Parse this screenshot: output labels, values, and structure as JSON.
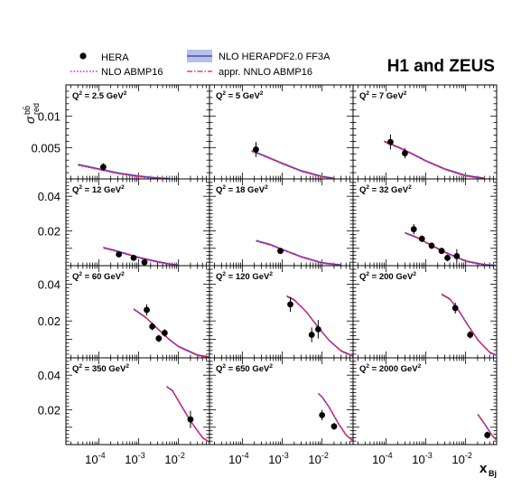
{
  "chart_data": {
    "type": "scatter",
    "title": "H1 and ZEUS",
    "ylabel_main": "σ",
    "ylabel_sup": "bb̄",
    "ylabel_sub": "red",
    "xlabel_main": "x",
    "xlabel_sub": "Bj",
    "xscale": "log",
    "xlim": [
      1.5e-05,
      0.06
    ],
    "x_ticks": [
      {
        "value": 0.0001,
        "base": "10",
        "exp": "-4"
      },
      {
        "value": 0.001,
        "base": "10",
        "exp": "-3"
      },
      {
        "value": 0.01,
        "base": "10",
        "exp": "-2"
      }
    ],
    "legend": {
      "placement": "top",
      "entries": [
        {
          "key": "data",
          "label": "HERA"
        },
        {
          "key": "abmp16",
          "label": "NLO ABMP16"
        },
        {
          "key": "herapdf",
          "label": "NLO HERAPDF2.0 FF3A"
        },
        {
          "key": "nnlo",
          "label": "appr. NNLO ABMP16"
        }
      ]
    },
    "colors": {
      "data": "#000000",
      "herapdf_line": "#2233cc",
      "herapdf_band": "#b8c0e8",
      "abmp16": "#ff00ff",
      "nnlo": "#ee2222"
    },
    "rows": [
      {
        "ylim": [
          0,
          0.015
        ],
        "yticks": [
          {
            "v": 0.005,
            "t": "0.005"
          },
          {
            "v": 0.01,
            "t": "0.01"
          }
        ]
      },
      {
        "ylim": [
          0,
          0.05
        ],
        "yticks": [
          {
            "v": 0.02,
            "t": "0.02"
          },
          {
            "v": 0.04,
            "t": "0.04"
          }
        ]
      },
      {
        "ylim": [
          0,
          0.05
        ],
        "yticks": [
          {
            "v": 0.02,
            "t": "0.02"
          },
          {
            "v": 0.04,
            "t": "0.04"
          }
        ]
      },
      {
        "ylim": [
          0,
          0.05
        ],
        "yticks": [
          {
            "v": 0.02,
            "t": "0.02"
          },
          {
            "v": 0.04,
            "t": "0.04"
          }
        ]
      }
    ],
    "panels": [
      {
        "q2": "2.5",
        "row": 0,
        "col": 0,
        "points": [
          {
            "x": 0.00013,
            "y": 0.0019,
            "err": 0.0006
          }
        ],
        "curve": [
          [
            3e-05,
            0.0023
          ],
          [
            0.0001,
            0.0016
          ],
          [
            0.0003,
            0.00095
          ],
          [
            0.001,
            0.00045
          ],
          [
            0.003,
            0.00015
          ],
          [
            0.006,
            5e-05
          ]
        ]
      },
      {
        "q2": "5",
        "row": 0,
        "col": 1,
        "points": [
          {
            "x": 0.00022,
            "y": 0.0047,
            "err": 0.0012
          }
        ],
        "curve": [
          [
            0.00017,
            0.0045
          ],
          [
            0.0003,
            0.0039
          ],
          [
            0.001,
            0.0025
          ],
          [
            0.003,
            0.0013
          ],
          [
            0.01,
            0.0004
          ],
          [
            0.02,
            0.0001
          ]
        ]
      },
      {
        "q2": "7",
        "row": 0,
        "col": 2,
        "points": [
          {
            "x": 0.00013,
            "y": 0.0059,
            "err": 0.0012
          },
          {
            "x": 0.0003,
            "y": 0.0041,
            "err": 0.0008
          }
        ],
        "curve": [
          [
            9e-05,
            0.006
          ],
          [
            0.0002,
            0.0051
          ],
          [
            0.0005,
            0.0039
          ],
          [
            0.001,
            0.0029
          ],
          [
            0.003,
            0.0016
          ],
          [
            0.01,
            0.00055
          ],
          [
            0.03,
            0.0001
          ]
        ]
      },
      {
        "q2": "12",
        "row": 1,
        "col": 0,
        "points": [
          {
            "x": 0.00032,
            "y": 0.0065,
            "err": 0.0015
          },
          {
            "x": 0.00075,
            "y": 0.0045,
            "err": 0.0012
          },
          {
            "x": 0.0014,
            "y": 0.002,
            "err": 0.0006
          }
        ],
        "curve": [
          [
            0.00013,
            0.0105
          ],
          [
            0.0003,
            0.0083
          ],
          [
            0.001,
            0.0048
          ],
          [
            0.003,
            0.0023
          ],
          [
            0.006,
            0.001
          ],
          [
            0.01,
            0.0004
          ]
        ]
      },
      {
        "q2": "18",
        "row": 1,
        "col": 1,
        "points": [
          {
            "x": 0.0009,
            "y": 0.0085,
            "err": 0.0015
          }
        ],
        "curve": [
          [
            0.00022,
            0.0145
          ],
          [
            0.0005,
            0.0122
          ],
          [
            0.001,
            0.0094
          ],
          [
            0.003,
            0.0052
          ],
          [
            0.01,
            0.0017
          ],
          [
            0.03,
            0.0004
          ]
        ]
      },
      {
        "q2": "32",
        "row": 1,
        "col": 2,
        "points": [
          {
            "x": 0.0005,
            "y": 0.021,
            "err": 0.003
          },
          {
            "x": 0.0008,
            "y": 0.0155,
            "err": 0.002
          },
          {
            "x": 0.0014,
            "y": 0.0115,
            "err": 0.0018
          },
          {
            "x": 0.0025,
            "y": 0.0085,
            "err": 0.0018
          },
          {
            "x": 0.0035,
            "y": 0.0045,
            "err": 0.002
          },
          {
            "x": 0.006,
            "y": 0.0055,
            "err": 0.004
          }
        ],
        "curve": [
          [
            0.0003,
            0.019
          ],
          [
            0.0006,
            0.0163
          ],
          [
            0.001,
            0.0135
          ],
          [
            0.003,
            0.0078
          ],
          [
            0.01,
            0.0027
          ],
          [
            0.03,
            0.0006
          ],
          [
            0.06,
            0.0001
          ]
        ]
      },
      {
        "q2": "60",
        "row": 2,
        "col": 0,
        "points": [
          {
            "x": 0.0016,
            "y": 0.026,
            "err": 0.003
          },
          {
            "x": 0.0022,
            "y": 0.017,
            "err": 0.002
          },
          {
            "x": 0.0032,
            "y": 0.0105,
            "err": 0.002
          },
          {
            "x": 0.0045,
            "y": 0.0135,
            "err": 0.002
          }
        ],
        "curve": [
          [
            0.00075,
            0.0265
          ],
          [
            0.0015,
            0.022
          ],
          [
            0.003,
            0.0158
          ],
          [
            0.006,
            0.0098
          ],
          [
            0.01,
            0.0062
          ],
          [
            0.03,
            0.0015
          ],
          [
            0.06,
            0.0004
          ]
        ]
      },
      {
        "q2": "120",
        "row": 2,
        "col": 1,
        "points": [
          {
            "x": 0.0016,
            "y": 0.029,
            "err": 0.004
          },
          {
            "x": 0.0055,
            "y": 0.0125,
            "err": 0.004
          },
          {
            "x": 0.008,
            "y": 0.0155,
            "err": 0.005
          }
        ],
        "curve": [
          [
            0.0013,
            0.0335
          ],
          [
            0.002,
            0.0315
          ],
          [
            0.004,
            0.025
          ],
          [
            0.008,
            0.0165
          ],
          [
            0.015,
            0.0095
          ],
          [
            0.03,
            0.0038
          ],
          [
            0.06,
            0.001
          ]
        ]
      },
      {
        "q2": "200",
        "row": 2,
        "col": 2,
        "points": [
          {
            "x": 0.0055,
            "y": 0.027,
            "err": 0.003
          },
          {
            "x": 0.013,
            "y": 0.0125,
            "err": 0.002
          }
        ],
        "curve": [
          [
            0.0025,
            0.0345
          ],
          [
            0.004,
            0.032
          ],
          [
            0.007,
            0.025
          ],
          [
            0.01,
            0.0195
          ],
          [
            0.02,
            0.0098
          ],
          [
            0.04,
            0.003
          ],
          [
            0.06,
            0.0013
          ]
        ]
      },
      {
        "q2": "350",
        "row": 3,
        "col": 0,
        "points": [
          {
            "x": 0.02,
            "y": 0.0145,
            "err": 0.005
          }
        ],
        "curve": [
          [
            0.005,
            0.0335
          ],
          [
            0.007,
            0.0312
          ],
          [
            0.01,
            0.025
          ],
          [
            0.02,
            0.0135
          ],
          [
            0.04,
            0.004
          ],
          [
            0.06,
            0.0014
          ]
        ]
      },
      {
        "q2": "650",
        "row": 3,
        "col": 1,
        "points": [
          {
            "x": 0.01,
            "y": 0.017,
            "err": 0.003
          },
          {
            "x": 0.02,
            "y": 0.0105,
            "err": 0.002
          }
        ],
        "curve": [
          [
            0.008,
            0.0295
          ],
          [
            0.01,
            0.0275
          ],
          [
            0.015,
            0.0215
          ],
          [
            0.025,
            0.0125
          ],
          [
            0.04,
            0.0055
          ],
          [
            0.06,
            0.0022
          ]
        ]
      },
      {
        "q2": "2000",
        "row": 3,
        "col": 2,
        "points": [
          {
            "x": 0.035,
            "y": 0.0055,
            "err": 0.002
          }
        ],
        "curve": [
          [
            0.02,
            0.0175
          ],
          [
            0.03,
            0.0118
          ],
          [
            0.045,
            0.0055
          ],
          [
            0.06,
            0.0025
          ]
        ]
      }
    ]
  }
}
